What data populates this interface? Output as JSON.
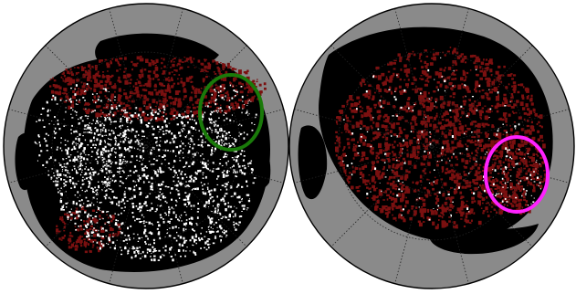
{
  "figure": {
    "panels": [
      {
        "id": "left",
        "highlight": {
          "shape": "ellipse",
          "color": "#1a7a0a"
        }
      },
      {
        "id": "right",
        "highlight": {
          "shape": "ellipse",
          "color": "#ff22ff"
        }
      }
    ],
    "colors": {
      "background": "#ffffff",
      "sky": "#8a8a8a",
      "outline": "#000000",
      "graticule": "#222222",
      "coverage": "#000000",
      "emission_red": "#7a1010",
      "emission_white": "#ffffff"
    }
  }
}
